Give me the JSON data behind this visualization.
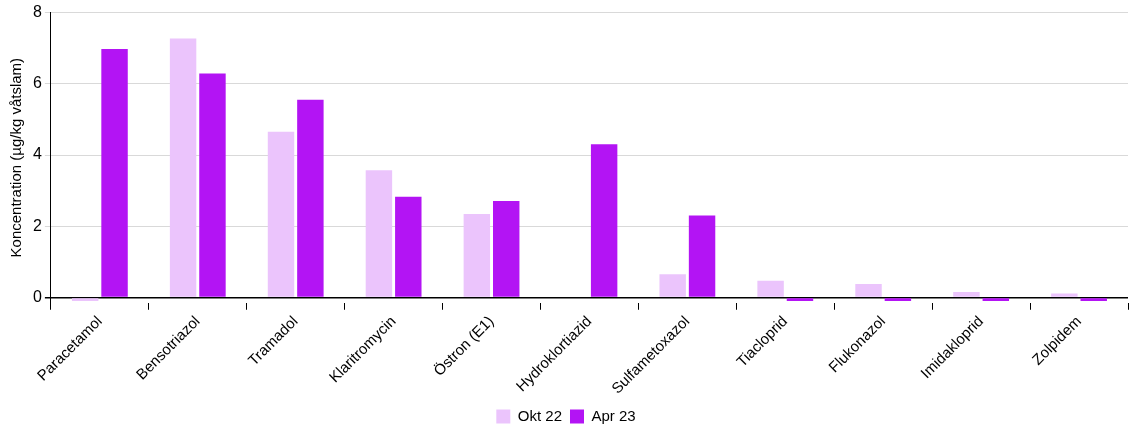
{
  "chart_data": {
    "type": "bar",
    "ylabel": "Koncentration (µg/kg våtslam)",
    "categories": [
      "Paracetamol",
      "Bensotriazol",
      "Tramadol",
      "Klaritromycin",
      "Östron (E1)",
      "Hydroklortiazid",
      "Sulfametoxazol",
      "Tiacloprid",
      "Flukonazol",
      "Imidakloprid",
      "Zolpidem"
    ],
    "series": [
      {
        "name": "Okt 22",
        "color": "#ebc4fc",
        "values": [
          -0.1,
          7.27,
          4.65,
          3.57,
          2.34,
          null,
          0.65,
          0.47,
          0.38,
          0.15,
          0.11
        ]
      },
      {
        "name": "Apr 23",
        "color": "#b314f4",
        "values": [
          6.98,
          6.29,
          5.55,
          2.83,
          2.71,
          4.3,
          2.3,
          -0.1,
          -0.1,
          -0.1,
          -0.1
        ]
      }
    ],
    "ylim": [
      -0.15,
      8
    ],
    "yticks": [
      0,
      2,
      4,
      6,
      8
    ],
    "grid": "y",
    "legend": "bottom"
  }
}
